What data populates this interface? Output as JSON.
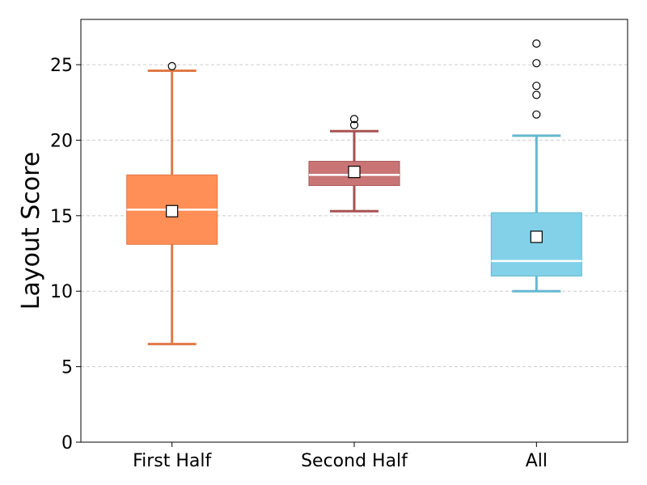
{
  "chart_data": {
    "type": "box",
    "ylabel": "Layout Score",
    "ylim": [
      0,
      28
    ],
    "yticks": [
      0,
      5,
      10,
      15,
      20,
      25
    ],
    "grid": "y-dashed",
    "categories": [
      "First Half",
      "Second Half",
      "All"
    ],
    "boxes": [
      {
        "name": "First Half",
        "whisker_low": 6.5,
        "q1": 13.1,
        "median": 15.4,
        "q3": 17.7,
        "whisker_high": 24.6,
        "mean": 15.3,
        "outliers": [
          24.9
        ],
        "fill": "#ff8f57",
        "edge": "#e07a45"
      },
      {
        "name": "Second Half",
        "whisker_low": 15.3,
        "q1": 17.0,
        "median": 17.7,
        "q3": 18.6,
        "whisker_high": 20.6,
        "mean": 17.9,
        "outliers": [
          21.0,
          21.4
        ],
        "fill": "#c97575",
        "edge": "#a85252"
      },
      {
        "name": "All",
        "whisker_low": 10.0,
        "q1": 11.0,
        "median": 12.0,
        "q3": 15.2,
        "whisker_high": 20.3,
        "mean": 13.6,
        "outliers": [
          21.7,
          23.0,
          23.6,
          25.1,
          26.4
        ],
        "fill": "#82d1e8",
        "edge": "#66b8d0"
      }
    ]
  }
}
